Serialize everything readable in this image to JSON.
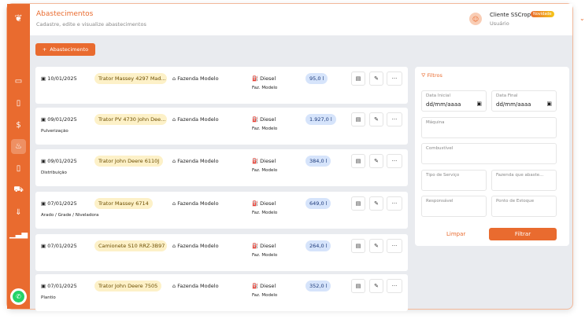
{
  "header": {
    "title": "Abastecimentos",
    "subtitle": "Cadastre, edite e visualize abastecimentos",
    "user_name": "Cliente SSCrop",
    "user_role": "Usuário",
    "badge": "Novidade"
  },
  "add_button": "Abastecimento",
  "sidebar": {
    "items": [
      "laptop-icon",
      "document-icon",
      "dollar-icon",
      "plant-icon",
      "phone-icon",
      "cart-icon",
      "download-icon",
      "chart-icon"
    ],
    "active": "plant-icon"
  },
  "records": [
    {
      "date": "10/01/2025",
      "service": "",
      "machine": "Trator Massey 4297 Mad...",
      "farm": "Fazenda Modelo",
      "fuel": "Diesel",
      "location": "Faz. Modelo",
      "quantity": "95,0 l"
    },
    {
      "date": "09/01/2025",
      "service": "Pulverização",
      "machine": "Trator PV 4730 John Dee...",
      "farm": "Fazenda Modelo",
      "fuel": "Diesel",
      "location": "Faz. Modelo",
      "quantity": "1.927,0 l"
    },
    {
      "date": "09/01/2025",
      "service": "Distribuição",
      "machine": "Trator John Deere 6110J",
      "farm": "Fazenda Modelo",
      "fuel": "Diesel",
      "location": "Faz. Modelo",
      "quantity": "384,0 l"
    },
    {
      "date": "07/01/2025",
      "service": "Arado / Grade / Niveladora",
      "machine": "Trator Massey 6714",
      "farm": "Fazenda Modelo",
      "fuel": "Diesel",
      "location": "Faz. Modelo",
      "quantity": "649,0 l"
    },
    {
      "date": "07/01/2025",
      "service": "",
      "machine": "Camionete S10 RRZ-3B97",
      "farm": "Fazenda Modelo",
      "fuel": "Diesel",
      "location": "Faz. Modelo",
      "quantity": "264,0 l"
    },
    {
      "date": "07/01/2025",
      "service": "Plantio",
      "machine": "Trator John Deere 7505",
      "farm": "Fazenda Modelo",
      "fuel": "Diesel",
      "location": "Faz. Modelo",
      "quantity": "352,0 l"
    }
  ],
  "filters": {
    "title": "Filtros",
    "start_label": "Data Inicial",
    "start_value": "dd/mm/aaaa",
    "end_label": "Data Final",
    "end_value": "dd/mm/aaaa",
    "machine": "Máquina",
    "fuel": "Combustível",
    "service": "Tipo de Serviço",
    "farm": "Fazenda que abaste...",
    "responsible": "Responsável",
    "stock": "Ponto de Estoque",
    "clear": "Limpar",
    "apply": "Filtrar"
  },
  "colors": {
    "accent": "#E96B2F",
    "machine_badge": "#FDF1C8",
    "quantity_badge": "#D6E4FB"
  }
}
